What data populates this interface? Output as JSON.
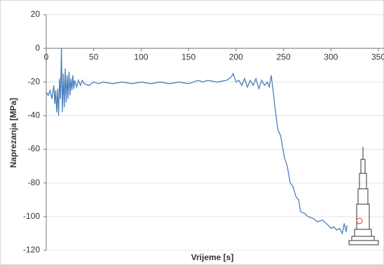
{
  "chart_data": {
    "type": "line",
    "x_label": "Vrijeme [s]",
    "y_label": "Naprezanja [MPa]",
    "x": [
      0,
      2,
      4,
      6,
      8,
      9,
      10,
      11,
      12,
      13,
      14,
      15,
      16,
      17,
      18,
      19,
      20,
      21,
      22,
      23,
      24,
      25,
      26,
      27,
      28,
      29,
      30,
      32,
      34,
      36,
      38,
      40,
      45,
      50,
      55,
      60,
      70,
      80,
      90,
      100,
      110,
      120,
      130,
      140,
      150,
      160,
      165,
      170,
      180,
      190,
      195,
      197,
      200,
      203,
      206,
      209,
      212,
      215,
      218,
      221,
      224,
      227,
      230,
      233,
      235,
      237,
      239,
      241,
      244,
      247,
      251,
      254,
      257,
      260,
      263,
      266,
      268,
      272,
      276,
      281,
      286,
      291,
      295,
      297,
      300,
      303,
      306,
      309,
      312,
      314,
      316,
      317
    ],
    "series": [
      {
        "name": "Naprezanja",
        "color": "#4a7ebb",
        "values": [
          -26,
          -28,
          -25,
          -30,
          -22,
          -33,
          -25,
          -38,
          -24,
          -40,
          -18,
          -30,
          0,
          -38,
          -15,
          -35,
          -12,
          -32,
          -16,
          -30,
          -14,
          -28,
          -18,
          -25,
          -16,
          -24,
          -19,
          -23,
          -19,
          -22,
          -19,
          -21,
          -22,
          -20,
          -21,
          -20,
          -21,
          -20,
          -21,
          -20,
          -21,
          -20,
          -21,
          -20,
          -21,
          -19,
          -20,
          -19,
          -20,
          -19,
          -17,
          -15,
          -20,
          -19,
          -22,
          -18,
          -23,
          -19,
          -22,
          -18,
          -24,
          -19,
          -22,
          -20,
          -23,
          -16,
          -25,
          -35,
          -48,
          -52,
          -65,
          -70,
          -80,
          -82,
          -88,
          -90,
          -97,
          -98,
          -100,
          -101,
          -103,
          -102,
          -104,
          -105,
          -107,
          -106,
          -108,
          -107,
          -110,
          -104,
          -109,
          -105
        ]
      }
    ],
    "xlim": [
      0,
      350
    ],
    "xticks": [
      0,
      50,
      100,
      150,
      200,
      250,
      300,
      350
    ],
    "ylim": [
      -120,
      20
    ],
    "yticks": [
      20,
      0,
      -20,
      -40,
      -60,
      -80,
      -100,
      -120
    ],
    "grid": true
  }
}
